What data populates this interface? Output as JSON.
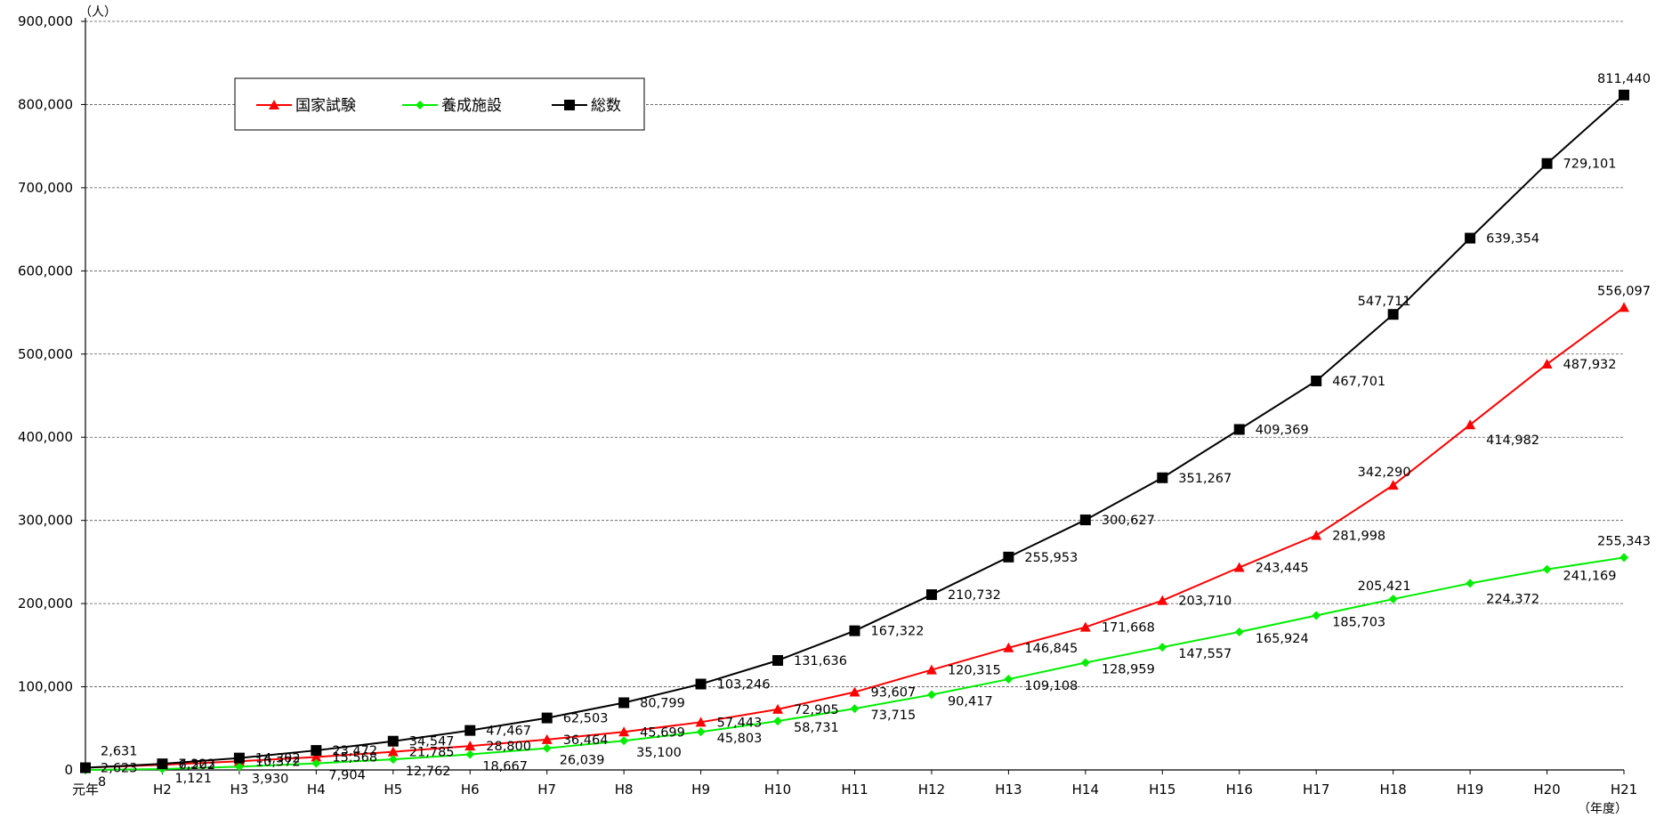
{
  "chart_data": {
    "type": "line",
    "categories": [
      "元年",
      "H2",
      "H3",
      "H4",
      "H5",
      "H6",
      "H7",
      "H8",
      "H9",
      "H10",
      "H11",
      "H12",
      "H13",
      "H14",
      "H15",
      "H16",
      "H17",
      "H18",
      "H19",
      "H20",
      "H21"
    ],
    "y_unit_label": "（人）",
    "x_unit_label": "（年度）",
    "ylim": [
      0,
      900000
    ],
    "yticks": [
      0,
      100000,
      200000,
      300000,
      400000,
      500000,
      600000,
      700000,
      800000,
      900000
    ],
    "ytick_labels": [
      "0",
      "100,000",
      "200,000",
      "300,000",
      "400,000",
      "500,000",
      "600,000",
      "700,000",
      "800,000",
      "900,000"
    ],
    "grid": true,
    "legend_position": "top-left",
    "series": [
      {
        "name": "国家試験",
        "color": "#ff0000",
        "marker": "triangle",
        "values": [
          2623,
          6202,
          10372,
          15568,
          21785,
          28800,
          36464,
          45699,
          57443,
          72905,
          93607,
          120315,
          146845,
          171668,
          203710,
          243445,
          281998,
          342290,
          414982,
          487932,
          556097
        ],
        "labels": [
          "2,623",
          "6,202",
          "10,372",
          "15,568",
          "21,785",
          "28,800",
          "36,464",
          "45,699",
          "57,443",
          "72,905",
          "93,607",
          "120,315",
          "146,845",
          "171,668",
          "203,710",
          "243,445",
          "281,998",
          "342,290",
          "414,982",
          "487,932",
          "556,097"
        ]
      },
      {
        "name": "養成施設",
        "color": "#00ee00",
        "marker": "diamond",
        "values": [
          8,
          1121,
          3930,
          7904,
          12762,
          18667,
          26039,
          35100,
          45803,
          58731,
          73715,
          90417,
          109108,
          128959,
          147557,
          165924,
          185703,
          205421,
          224372,
          241169,
          255343
        ],
        "labels": [
          "8",
          "1,121",
          "3,930",
          "7,904",
          "12,762",
          "18,667",
          "26,039",
          "35,100",
          "45,803",
          "58,731",
          "73,715",
          "90,417",
          "109,108",
          "128,959",
          "147,557",
          "165,924",
          "185,703",
          "205,421",
          "224,372",
          "241,169",
          "255,343"
        ]
      },
      {
        "name": "総数",
        "color": "#000000",
        "marker": "square",
        "values": [
          2631,
          7323,
          14302,
          23472,
          34547,
          47467,
          62503,
          80799,
          103246,
          131636,
          167322,
          210732,
          255953,
          300627,
          351267,
          409369,
          467701,
          547711,
          639354,
          729101,
          811440
        ],
        "labels": [
          "2,631",
          "7,323",
          "14,302",
          "23,472",
          "34,547",
          "47,467",
          "62,503",
          "80,799",
          "103,246",
          "131,636",
          "167,322",
          "210,732",
          "255,953",
          "300,627",
          "351,267",
          "409,369",
          "467,701",
          "547,711",
          "639,354",
          "729,101",
          "811,440"
        ]
      }
    ]
  }
}
